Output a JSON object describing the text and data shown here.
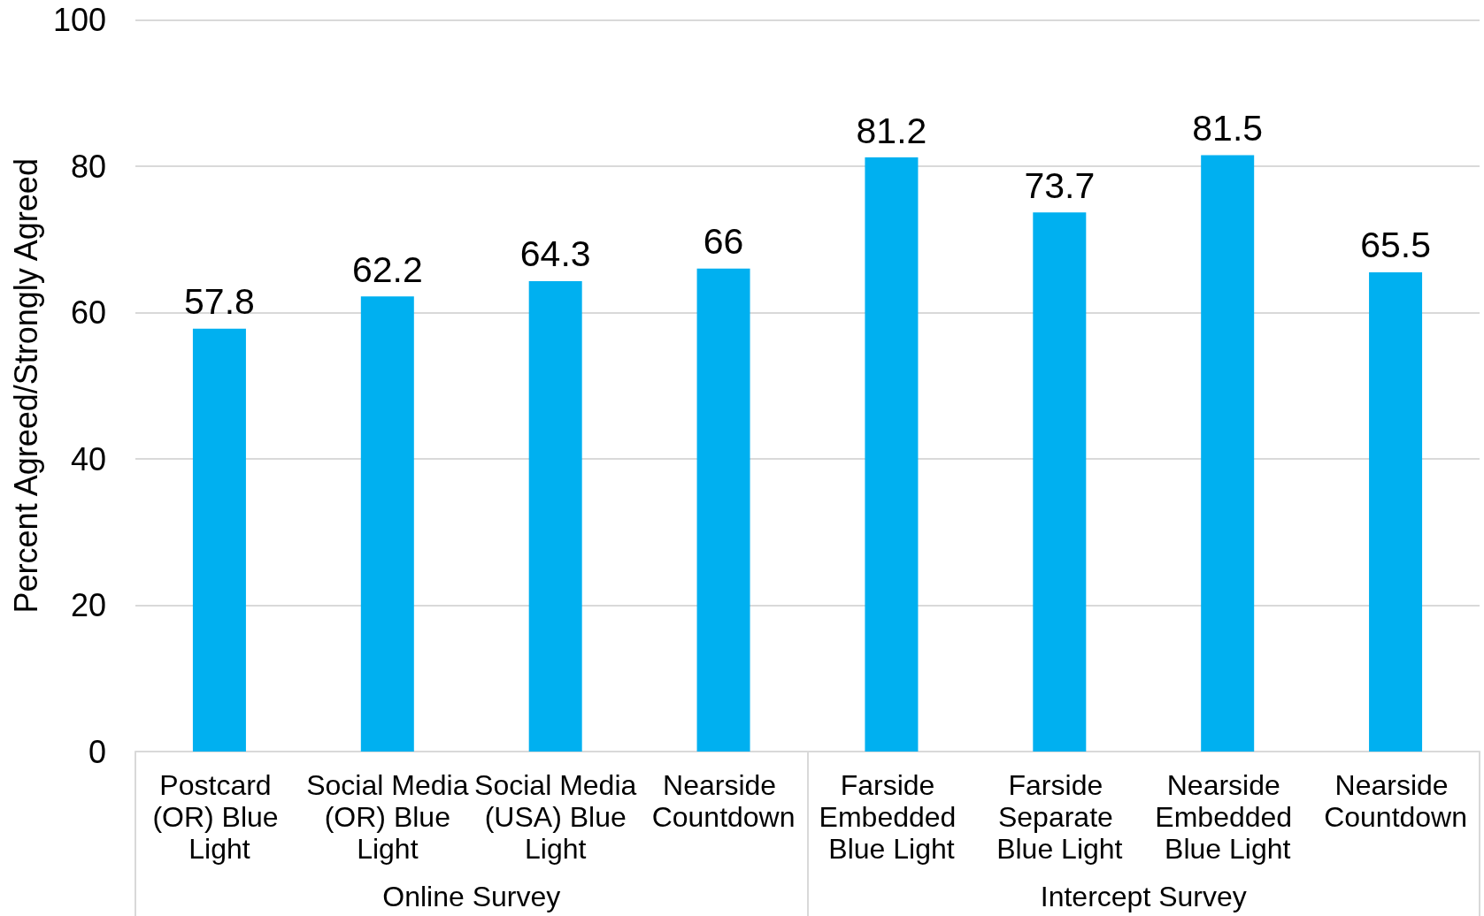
{
  "chart_data": {
    "type": "bar",
    "ylabel": "Percent Agreed/Strongly Agreed",
    "categories": [
      "Postcard (OR) Blue Light",
      "Social Media (OR) Blue Light",
      "Social Media (USA) Blue Light",
      "Nearside Countdown",
      "Farside Embedded Blue Light",
      "Farside Separate Blue Light",
      "Nearside Embedded Blue Light",
      "Nearside Countdown"
    ],
    "values": [
      57.8,
      62.2,
      64.3,
      66,
      81.2,
      73.7,
      81.5,
      65.5
    ],
    "color": "#00b0f0",
    "ylim": [
      0,
      100
    ],
    "yticks": [
      0,
      20,
      40,
      60,
      80,
      100
    ],
    "grid": "y",
    "data_labels": true,
    "annotations": [
      "Online Survey",
      "Intercept Survey"
    ]
  }
}
